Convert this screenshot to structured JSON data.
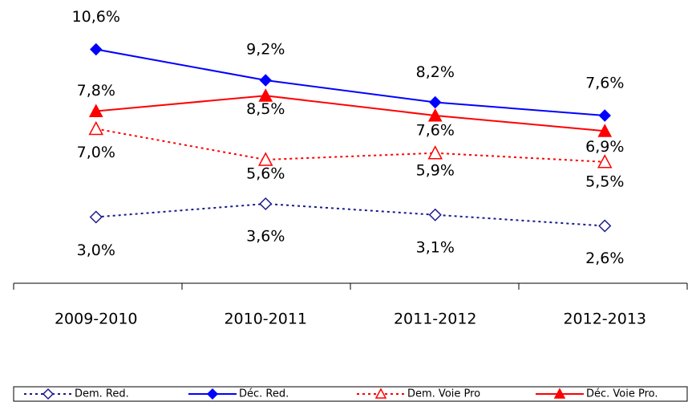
{
  "chart_data": {
    "type": "line",
    "categories": [
      "2009-2010",
      "2010-2011",
      "2011-2012",
      "2012-2013"
    ],
    "ylim": [
      0,
      12
    ],
    "series": [
      {
        "name": "Dem. Red.",
        "color": "#1a1a8c",
        "dashed": true,
        "marker": "diamond",
        "filled": false,
        "values": [
          3.0,
          3.6,
          3.1,
          2.6
        ],
        "value_labels": [
          "3,0%",
          "3,6%",
          "3,1%",
          "2,6%"
        ]
      },
      {
        "name": "Déc. Red.",
        "color": "#0000ff",
        "dashed": false,
        "marker": "diamond",
        "filled": true,
        "values": [
          10.6,
          9.2,
          8.2,
          7.6
        ],
        "value_labels": [
          "10,6%",
          "9,2%",
          "8,2%",
          "7,6%"
        ]
      },
      {
        "name": "Dem. Voie Pro",
        "color": "#ff0000",
        "dashed": true,
        "marker": "triangle",
        "filled": false,
        "values": [
          7.0,
          5.6,
          5.9,
          5.5
        ],
        "value_labels": [
          "7,0%",
          "5,6%",
          "5,9%",
          "5,5%"
        ]
      },
      {
        "name": "Déc. Voie Pro.",
        "color": "#ff0000",
        "dashed": false,
        "marker": "triangle",
        "filled": true,
        "values": [
          7.8,
          8.5,
          7.6,
          6.9
        ],
        "value_labels": [
          "7,8%",
          "8,5%",
          "7,6%",
          "6,9%"
        ]
      }
    ]
  }
}
